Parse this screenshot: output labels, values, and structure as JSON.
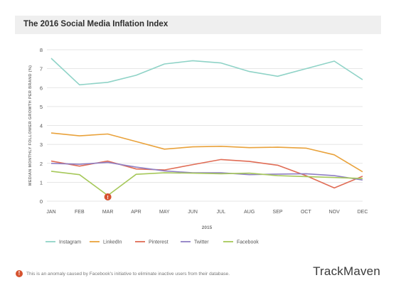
{
  "title": "The 2016 Social Media Inflation Index",
  "footnote": {
    "marker": "!",
    "text": "This is an anomaly caused by Facebook's initiative to eliminate inactive users from their database."
  },
  "brand": "TrackMaven",
  "chart_data": {
    "type": "line",
    "title": "The 2016 Social Media Inflation Index",
    "xlabel": "2015",
    "ylabel": "MEDIAN MONTHLY FOLLOWER GROWTH PER BRAND (%)",
    "categories": [
      "JAN",
      "FEB",
      "MAR",
      "APR",
      "MAY",
      "JUN",
      "JUL",
      "AUG",
      "SEP",
      "OCT",
      "NOV",
      "DEC"
    ],
    "yticks": [
      0,
      1,
      2,
      3,
      4,
      5,
      6,
      7,
      8
    ],
    "ylim": [
      0,
      8
    ],
    "grid": true,
    "legend": "bottom",
    "series": [
      {
        "name": "Instagram",
        "color": "#8fd3c7",
        "values": [
          7.55,
          6.15,
          6.28,
          6.65,
          7.25,
          7.42,
          7.3,
          6.85,
          6.6,
          7.0,
          7.4,
          6.42
        ]
      },
      {
        "name": "LinkedIn",
        "color": "#e9a23b",
        "values": [
          3.6,
          3.45,
          3.55,
          3.15,
          2.75,
          2.87,
          2.9,
          2.83,
          2.85,
          2.8,
          2.45,
          1.55
        ]
      },
      {
        "name": "Pinterest",
        "color": "#e06c55",
        "values": [
          2.12,
          1.85,
          2.12,
          1.7,
          1.65,
          1.93,
          2.2,
          2.1,
          1.9,
          1.35,
          0.7,
          1.32
        ]
      },
      {
        "name": "Twitter",
        "color": "#8f7fc4",
        "values": [
          2.0,
          1.95,
          2.05,
          1.8,
          1.6,
          1.5,
          1.5,
          1.4,
          1.43,
          1.45,
          1.35,
          1.12
        ]
      },
      {
        "name": "Facebook",
        "color": "#a6c85a",
        "values": [
          1.58,
          1.4,
          0.3,
          1.42,
          1.5,
          1.48,
          1.45,
          1.48,
          1.35,
          1.3,
          1.25,
          1.2
        ]
      }
    ],
    "annotation": {
      "series": "Facebook",
      "category": "MAR",
      "value": 0.3,
      "marker": "!"
    }
  }
}
